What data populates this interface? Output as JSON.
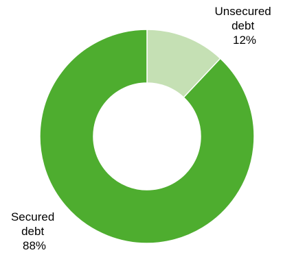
{
  "chart_data": {
    "type": "pie",
    "donut": true,
    "slices": [
      {
        "label_lines": [
          "Unsecured",
          "debt"
        ],
        "percent_text": "12%",
        "value": 12,
        "color": "#c5e0b4"
      },
      {
        "label_lines": [
          "Secured",
          "debt"
        ],
        "percent_text": "88%",
        "value": 88,
        "color": "#4ead2f"
      }
    ]
  }
}
